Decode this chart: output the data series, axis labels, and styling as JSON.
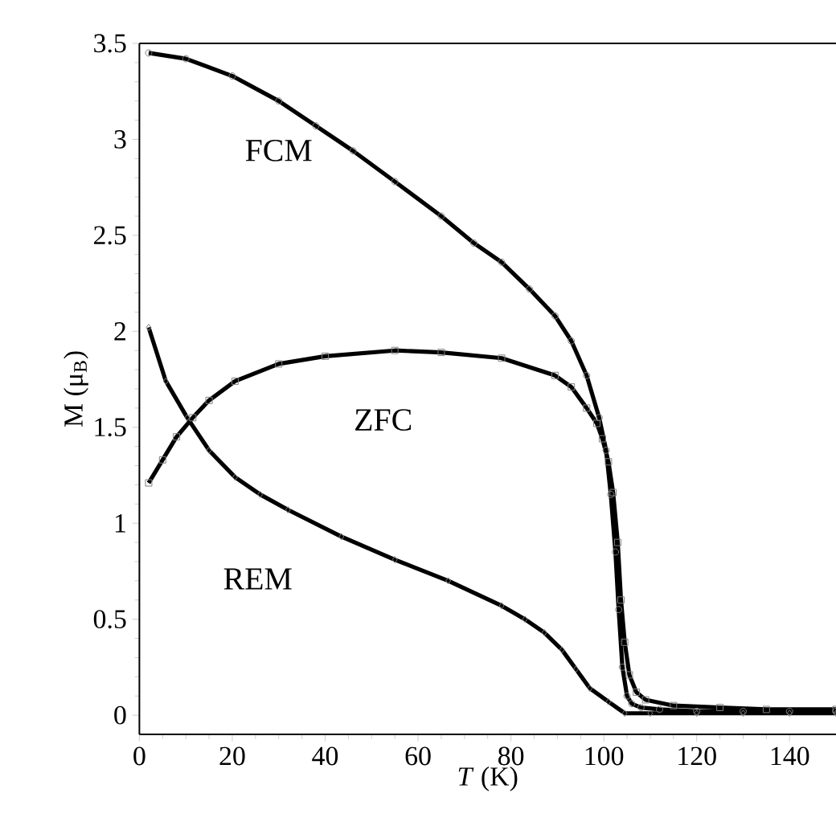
{
  "chart_data": {
    "type": "line",
    "xlabel": "*T* (K)",
    "ylabel": "M (μ$_{B}$)",
    "xlim": [
      0,
      150
    ],
    "ylim": [
      -0.1,
      3.5
    ],
    "xticks": [
      0,
      20,
      40,
      60,
      80,
      100,
      120,
      140
    ],
    "yticks": [
      0,
      0.5,
      1,
      1.5,
      2,
      2.5,
      3,
      3.5
    ],
    "grid": false,
    "legend": false,
    "line_style": "solid",
    "series": [
      {
        "name": "FCM",
        "color": "#000000",
        "marker": "circle",
        "x": [
          2,
          10,
          20,
          30,
          38,
          46,
          55,
          65,
          72,
          78,
          84,
          89.5,
          93,
          96.3,
          99,
          100.5,
          101.5,
          102.5,
          103.2,
          104,
          105,
          106,
          108,
          112,
          120,
          130,
          140,
          150
        ],
        "values": [
          3.45,
          3.42,
          3.33,
          3.2,
          3.07,
          2.94,
          2.78,
          2.6,
          2.46,
          2.36,
          2.22,
          2.08,
          1.95,
          1.77,
          1.55,
          1.38,
          1.15,
          0.85,
          0.55,
          0.25,
          0.1,
          0.06,
          0.04,
          0.03,
          0.02,
          0.02,
          0.02,
          0.02
        ]
      },
      {
        "name": "ZFC",
        "color": "#000000",
        "marker": "square",
        "x": [
          2,
          5,
          8,
          11.5,
          15,
          20.6,
          30,
          40,
          55,
          65,
          78,
          89.5,
          93,
          96.3,
          98.5,
          99.7,
          101,
          102,
          103,
          103.7,
          104.5,
          105.5,
          107,
          109,
          115,
          125,
          135,
          150
        ],
        "values": [
          1.21,
          1.33,
          1.45,
          1.55,
          1.64,
          1.74,
          1.83,
          1.87,
          1.9,
          1.89,
          1.86,
          1.77,
          1.71,
          1.6,
          1.52,
          1.44,
          1.32,
          1.16,
          0.9,
          0.6,
          0.38,
          0.21,
          0.12,
          0.08,
          0.05,
          0.04,
          0.03,
          0.03
        ]
      },
      {
        "name": "REM",
        "color": "#000000",
        "marker": "diamond",
        "x": [
          2,
          5.7,
          10.3,
          15,
          20.6,
          26,
          32,
          43.5,
          55,
          66.5,
          78,
          83,
          87.2,
          91,
          94,
          97,
          101,
          104.5,
          110,
          120,
          130,
          140,
          150
        ],
        "values": [
          2.02,
          1.74,
          1.55,
          1.38,
          1.24,
          1.15,
          1.07,
          0.93,
          0.81,
          0.7,
          0.57,
          0.5,
          0.43,
          0.34,
          0.24,
          0.14,
          0.07,
          0.01,
          0.01,
          0.01,
          0.01,
          0.01,
          0.01
        ]
      }
    ]
  }
}
